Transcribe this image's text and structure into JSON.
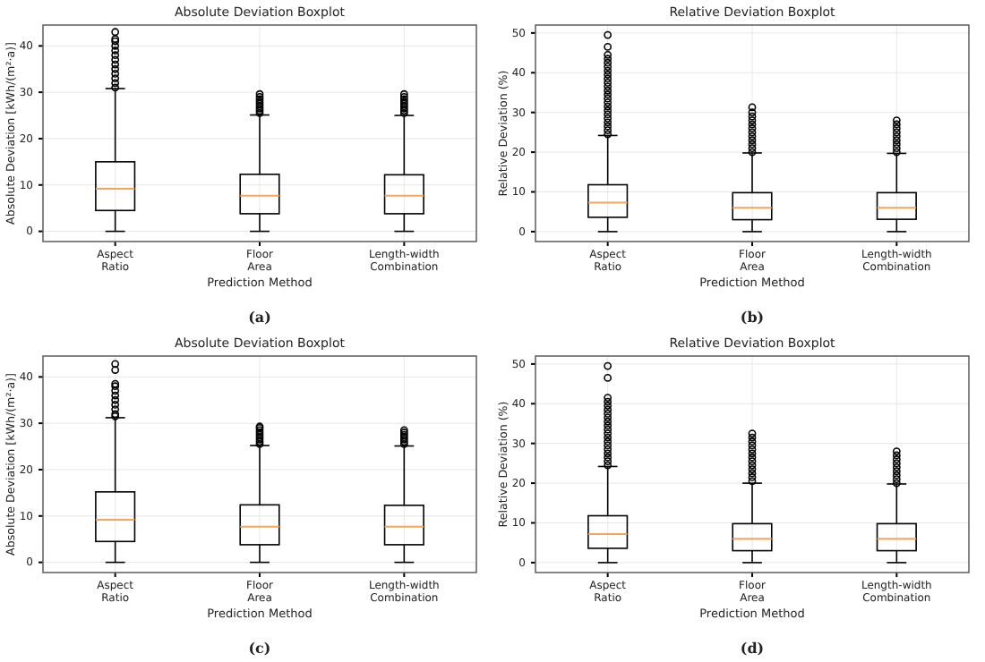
{
  "chart_data": [
    {
      "type": "box",
      "title": "Absolute Deviation Boxplot",
      "xlabel": "Prediction Method",
      "ylabel": "Absolute Deviation [kWh/(m²·a)]",
      "categories": [
        "Aspect Ratio",
        "Floor Area",
        "Length-width Combination"
      ],
      "ylim": [
        -2.2,
        44.5
      ],
      "yticks": [
        0,
        10,
        20,
        30,
        40
      ],
      "grid": true,
      "annotations": [
        "(a)"
      ],
      "series": [
        {
          "color": "#000000",
          "boxes": [
            {
              "low": 0,
              "q1": 4.5,
              "median": 9.2,
              "q3": 15,
              "high": 30.8,
              "outliers": [
                31,
                32,
                33,
                34,
                35,
                36,
                37,
                38,
                39,
                40,
                41,
                41.5,
                43
              ]
            },
            {
              "low": 0,
              "q1": 3.8,
              "median": 7.7,
              "q3": 12.3,
              "high": 25.1,
              "outliers": [
                25.5,
                26,
                26.5,
                27,
                27.5,
                28,
                28.5,
                29,
                29.6
              ]
            },
            {
              "low": 0,
              "q1": 3.8,
              "median": 7.7,
              "q3": 12.2,
              "high": 25,
              "outliers": [
                25.5,
                26,
                26.5,
                27,
                27.5,
                28,
                28.5,
                29,
                29.6
              ]
            }
          ]
        }
      ]
    },
    {
      "type": "box",
      "title": "Relative Deviation Boxplot",
      "xlabel": "Prediction Method",
      "ylabel": "Relative Deviation (%)",
      "categories": [
        "Aspect Ratio",
        "Floor Area",
        "Length-width Combination"
      ],
      "ylim": [
        -2.5,
        52
      ],
      "yticks": [
        0,
        10,
        20,
        30,
        40,
        50
      ],
      "grid": true,
      "annotations": [
        "(b)"
      ],
      "series": [
        {
          "color": "#000000",
          "boxes": [
            {
              "low": 0,
              "q1": 3.6,
              "median": 7.3,
              "q3": 11.8,
              "high": 24.2,
              "outliers": [
                24.5,
                25.5,
                26.5,
                27.5,
                28.5,
                29.5,
                30.5,
                31.5,
                32.5,
                33.5,
                34.5,
                35.5,
                36.5,
                37.5,
                38.5,
                39.5,
                40.5,
                41.5,
                42.5,
                43.5,
                44.5,
                46.5,
                49.5
              ]
            },
            {
              "low": 0,
              "q1": 3,
              "median": 6,
              "q3": 9.8,
              "high": 19.8,
              "outliers": [
                20,
                21,
                22,
                23,
                24,
                25,
                26,
                27,
                28,
                29,
                30,
                31.3
              ]
            },
            {
              "low": 0,
              "q1": 3.1,
              "median": 6,
              "q3": 9.8,
              "high": 19.7,
              "outliers": [
                20,
                21,
                22,
                23,
                24,
                25,
                26,
                27,
                28
              ]
            }
          ]
        }
      ]
    },
    {
      "type": "box",
      "title": "Absolute Deviation Boxplot",
      "xlabel": "Prediction Method",
      "ylabel": "Absolute Deviation [kWh/(m²·a)]",
      "categories": [
        "Aspect Ratio",
        "Floor Area",
        "Length-width Combination"
      ],
      "ylim": [
        -2.2,
        44.5
      ],
      "yticks": [
        0,
        10,
        20,
        30,
        40
      ],
      "grid": true,
      "annotations": [
        "(c)"
      ],
      "series": [
        {
          "color": "#000000",
          "boxes": [
            {
              "low": 0,
              "q1": 4.5,
              "median": 9.2,
              "q3": 15.2,
              "high": 31.2,
              "outliers": [
                31.5,
                32,
                33,
                34,
                35,
                36,
                37,
                38,
                38.5,
                41.5,
                42.8
              ]
            },
            {
              "low": 0,
              "q1": 3.8,
              "median": 7.7,
              "q3": 12.4,
              "high": 25.2,
              "outliers": [
                25.5,
                26,
                26.5,
                27,
                27.5,
                28,
                28.5,
                29,
                29.3
              ]
            },
            {
              "low": 0,
              "q1": 3.8,
              "median": 7.7,
              "q3": 12.3,
              "high": 25.1,
              "outliers": [
                25.5,
                26,
                26.5,
                27,
                27.5,
                28,
                28.5
              ]
            }
          ]
        }
      ]
    },
    {
      "type": "box",
      "title": "Relative Deviation Boxplot",
      "xlabel": "Prediction Method",
      "ylabel": "Relative Deviation (%)",
      "categories": [
        "Aspect Ratio",
        "Floor Area",
        "Length-width Combination"
      ],
      "ylim": [
        -2.5,
        52
      ],
      "yticks": [
        0,
        10,
        20,
        30,
        40,
        50
      ],
      "grid": true,
      "annotations": [
        "(d)"
      ],
      "series": [
        {
          "color": "#000000",
          "boxes": [
            {
              "low": 0,
              "q1": 3.6,
              "median": 7.2,
              "q3": 11.8,
              "high": 24.2,
              "outliers": [
                24.5,
                25.5,
                26.5,
                27.5,
                28.5,
                29.5,
                30.5,
                31.5,
                32.5,
                33.5,
                34.5,
                35.5,
                36.5,
                37.5,
                38.5,
                39.5,
                40.5,
                41.5,
                46.5,
                49.5
              ]
            },
            {
              "low": 0,
              "q1": 3,
              "median": 6,
              "q3": 9.8,
              "high": 20,
              "outliers": [
                20.5,
                21.5,
                22.5,
                23.5,
                24.5,
                25.5,
                26.5,
                27.5,
                28.5,
                29.5,
                30.5,
                31.5,
                32.5
              ]
            },
            {
              "low": 0,
              "q1": 3,
              "median": 6,
              "q3": 9.8,
              "high": 19.8,
              "outliers": [
                20,
                21,
                22,
                23,
                24,
                25,
                26,
                27,
                28
              ]
            }
          ]
        }
      ]
    }
  ]
}
